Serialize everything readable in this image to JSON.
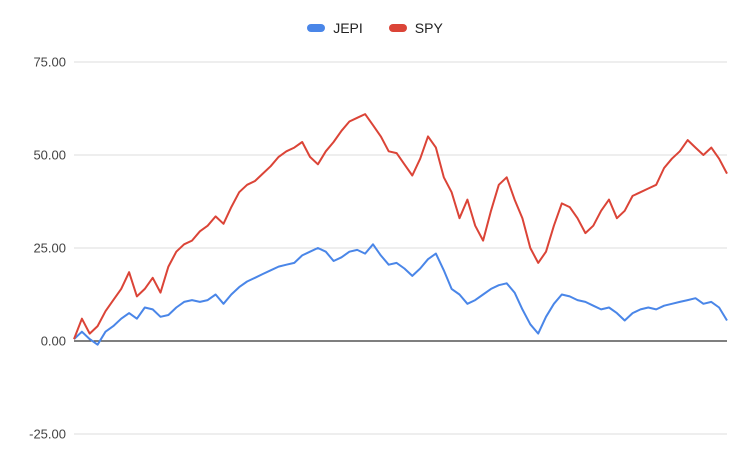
{
  "chart_data": {
    "type": "line",
    "ylim": [
      -25,
      75
    ],
    "ytick_labels": [
      "75.00",
      "50.00",
      "25.00",
      "0.00",
      "-25.00"
    ],
    "ytick_values": [
      75,
      50,
      25,
      0,
      -25
    ],
    "grid": true,
    "legend_position": "top-center",
    "series": [
      {
        "name": "JEPI",
        "color": "#4a86e8",
        "values": [
          0.5,
          2.5,
          0.5,
          -1.0,
          2.5,
          4.0,
          6.0,
          7.5,
          6.0,
          9.0,
          8.5,
          6.5,
          7.0,
          9.0,
          10.5,
          11.0,
          10.5,
          11.0,
          12.5,
          10.0,
          12.5,
          14.5,
          16.0,
          17.0,
          18.0,
          19.0,
          20.0,
          20.5,
          21.0,
          23.0,
          24.0,
          25.0,
          24.0,
          21.5,
          22.5,
          24.0,
          24.5,
          23.5,
          26.0,
          23.0,
          20.5,
          21.0,
          19.5,
          17.5,
          19.5,
          22.0,
          23.5,
          19.0,
          14.0,
          12.5,
          10.0,
          11.0,
          12.5,
          14.0,
          15.0,
          15.5,
          13.0,
          8.5,
          4.5,
          2.0,
          6.5,
          10.0,
          12.5,
          12.0,
          11.0,
          10.5,
          9.5,
          8.5,
          9.0,
          7.5,
          5.5,
          7.5,
          8.5,
          9.0,
          8.5,
          9.5,
          10.0,
          10.5,
          11.0,
          11.5,
          10.0,
          10.5,
          9.0,
          5.5
        ]
      },
      {
        "name": "SPY",
        "color": "#db4437",
        "values": [
          0.5,
          6.0,
          2.0,
          4.0,
          8.0,
          11.0,
          14.0,
          18.5,
          12.0,
          14.0,
          17.0,
          13.0,
          20.0,
          24.0,
          26.0,
          27.0,
          29.5,
          31.0,
          33.5,
          31.5,
          36.0,
          40.0,
          42.0,
          43.0,
          45.0,
          47.0,
          49.5,
          51.0,
          52.0,
          53.5,
          49.5,
          47.5,
          51.0,
          53.5,
          56.5,
          59.0,
          60.0,
          61.0,
          58.0,
          55.0,
          51.0,
          50.5,
          47.5,
          44.5,
          49.0,
          55.0,
          52.0,
          44.0,
          40.0,
          33.0,
          38.0,
          31.0,
          27.0,
          35.0,
          42.0,
          44.0,
          38.0,
          33.0,
          25.0,
          21.0,
          24.0,
          31.0,
          37.0,
          36.0,
          33.0,
          29.0,
          31.0,
          35.0,
          38.0,
          33.0,
          35.0,
          39.0,
          40.0,
          41.0,
          42.0,
          46.5,
          49.0,
          51.0,
          54.0,
          52.0,
          50.0,
          52.0,
          49.0,
          45.0
        ]
      }
    ]
  }
}
